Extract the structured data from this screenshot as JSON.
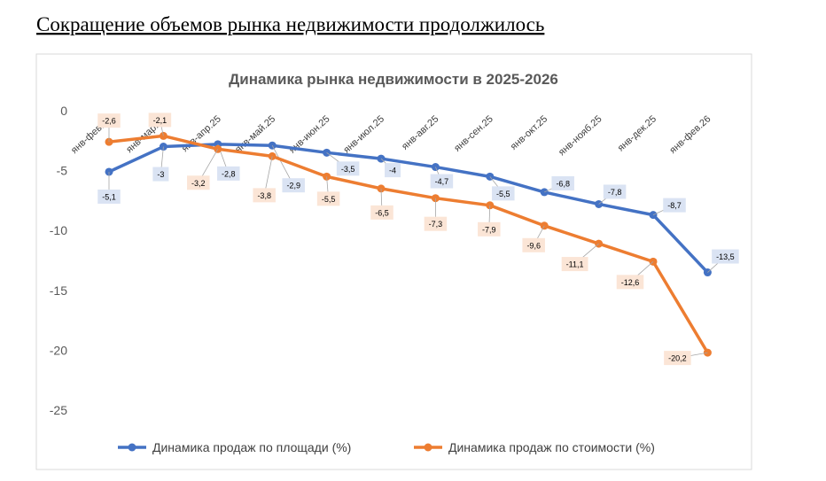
{
  "heading": "Сокращение объемов рынка недвижимости продолжилось",
  "chart_data": {
    "type": "line",
    "title": "Динамика рынка недвижимости в 2025-2026",
    "categories": [
      "янв-фев.25",
      "янв-мар.25",
      "янв-апр.25",
      "янв-май.25",
      "янв-июн.25",
      "янв-июл.25",
      "янв-авг.25",
      "янв-сен.25",
      "янв-окт.25",
      "янв-нояб.25",
      "янв-дек.25",
      "янв-фев.26"
    ],
    "series": [
      {
        "name": "Динамика продаж по площади (%)",
        "color": "#4472c4",
        "values": [
          -5.1,
          -3,
          -2.8,
          -2.9,
          -3.5,
          -4,
          -4.7,
          -5.5,
          -6.8,
          -7.8,
          -8.7,
          -13.5
        ],
        "value_labels": [
          "-5,1",
          "-3",
          "-2,8",
          "-2,9",
          "-3,5",
          "-4",
          "-4,7",
          "-5,5",
          "-6,8",
          "-7,8",
          "-8,7",
          "-13,5"
        ]
      },
      {
        "name": "Динамика продаж по стоимости (%)",
        "color": "#ed7d31",
        "values": [
          -2.6,
          -2.1,
          -3.2,
          -3.8,
          -5.5,
          -6.5,
          -7.3,
          -7.9,
          -9.6,
          -11.1,
          -12.6,
          -20.2
        ],
        "value_labels": [
          "-2,6",
          "-2,1",
          "-3,2",
          "-3,8",
          "-5,5",
          "-6,5",
          "-7,3",
          "-7,9",
          "-9,6",
          "-11,1",
          "-12,6",
          "-20,2"
        ]
      }
    ],
    "ylim": [
      -25,
      0
    ],
    "yticks": [
      0,
      -5,
      -10,
      -15,
      -20,
      -25
    ],
    "grid": false,
    "legend": "bottom"
  }
}
